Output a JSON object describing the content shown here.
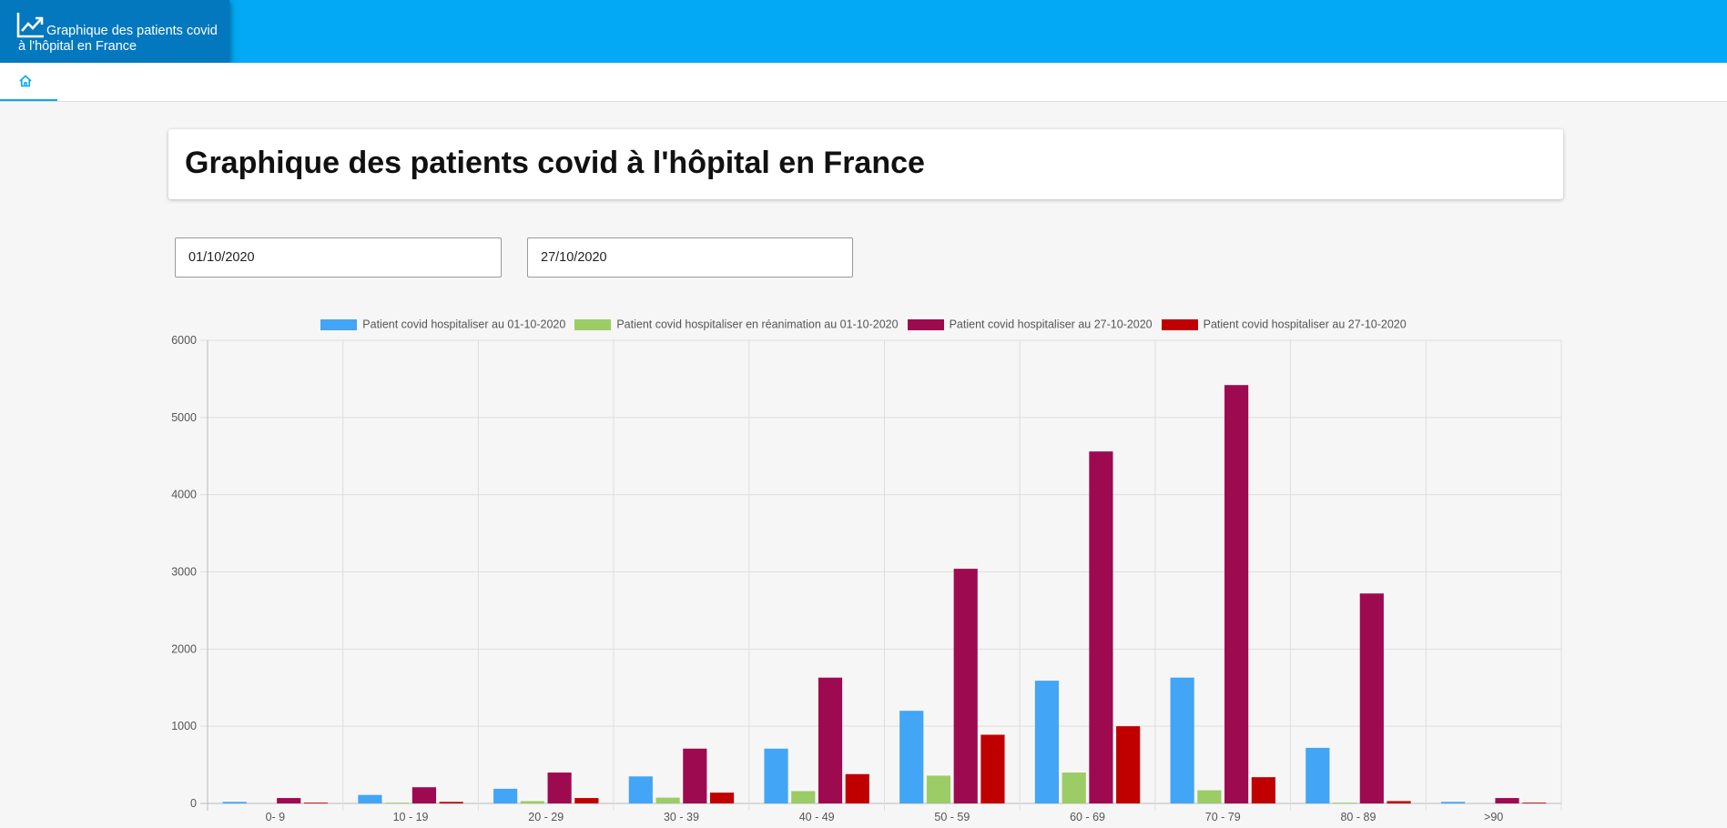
{
  "app": {
    "title": "Graphique des patients covid à l'hôpital en France"
  },
  "header": {
    "brand_title": "Graphique des patients covid à l'hôpital en France",
    "brand_icon": "trending-up-icon",
    "nav_icon": "home-icon"
  },
  "page": {
    "title": "Graphique des patients covid à l'hôpital en France"
  },
  "filters": {
    "start_date": "01/10/2020",
    "end_date": "27/10/2020"
  },
  "colors": {
    "topbar": "#03a9f4",
    "brand": "#0378bf",
    "series": [
      "#42a5f5",
      "#9ccc65",
      "#9e0a50",
      "#c00000"
    ]
  },
  "chart_data": {
    "type": "bar",
    "legend_position": "top",
    "grid": true,
    "categories": [
      "0- 9",
      "10 - 19",
      "20 - 29",
      "30 - 39",
      "40 - 49",
      "50 - 59",
      "60 - 69",
      "70 - 79",
      "80 - 89",
      ">90"
    ],
    "ylim": [
      0,
      6000
    ],
    "yticks": [
      0,
      1000,
      2000,
      3000,
      4000,
      5000,
      6000
    ],
    "series": [
      {
        "name": "Patient covid hospitaliser au 01-10-2020",
        "color": "#42a5f5",
        "values": [
          20,
          110,
          190,
          350,
          710,
          1200,
          1590,
          1630,
          720,
          20
        ]
      },
      {
        "name": "Patient covid hospitaliser en réanimation au 01-10-2020",
        "color": "#9ccc65",
        "values": [
          0,
          10,
          30,
          75,
          160,
          360,
          400,
          170,
          10,
          0
        ]
      },
      {
        "name": "Patient covid hospitaliser au 27-10-2020",
        "color": "#9e0a50",
        "values": [
          70,
          210,
          400,
          710,
          1630,
          3040,
          4560,
          5420,
          2720,
          70
        ]
      },
      {
        "name": "Patient covid hospitaliser au 27-10-2020",
        "color": "#c00000",
        "values": [
          10,
          20,
          70,
          140,
          380,
          890,
          1000,
          340,
          30,
          10
        ]
      }
    ]
  }
}
